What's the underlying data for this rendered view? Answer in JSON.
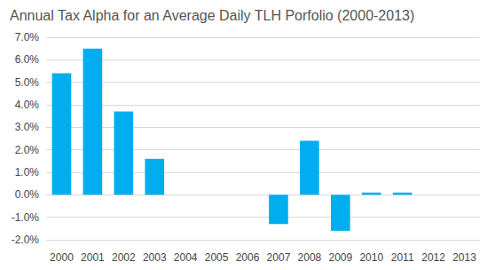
{
  "chart_data": {
    "type": "bar",
    "title": "Annual Tax Alpha for an Average Daily TLH Porfolio (2000-2013)",
    "categories": [
      "2000",
      "2001",
      "2002",
      "2003",
      "2004",
      "2005",
      "2006",
      "2007",
      "2008",
      "2009",
      "2010",
      "2011",
      "2012",
      "2013"
    ],
    "values": [
      5.4,
      6.5,
      3.7,
      1.6,
      0,
      0,
      0,
      -1.3,
      2.4,
      -1.6,
      0.1,
      0.1,
      0,
      0
    ],
    "color": "#00aeef",
    "ylim": [
      -2,
      7
    ],
    "yticks": [
      {
        "value": -2,
        "label": "-2.0%"
      },
      {
        "value": -1,
        "label": "-1.0%"
      },
      {
        "value": 0,
        "label": "0.0%"
      },
      {
        "value": 1,
        "label": "1.0%"
      },
      {
        "value": 2,
        "label": "2.0%"
      },
      {
        "value": 3,
        "label": "3.0%"
      },
      {
        "value": 4,
        "label": "4.0%"
      },
      {
        "value": 5,
        "label": "5.0%"
      },
      {
        "value": 6,
        "label": "6.0%"
      },
      {
        "value": 7,
        "label": "7.0%"
      }
    ],
    "grid": true
  }
}
